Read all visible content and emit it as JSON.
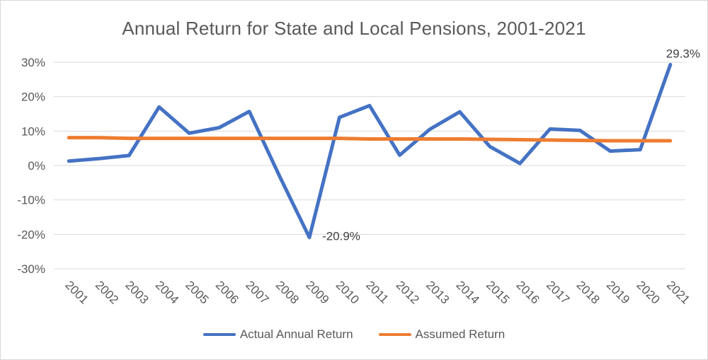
{
  "chart_data": {
    "type": "line",
    "title": "Annual Return for State and Local Pensions, 2001-2021",
    "xlabel": "",
    "ylabel": "",
    "categories": [
      "2001",
      "2002",
      "2003",
      "2004",
      "2005",
      "2006",
      "2007",
      "2008",
      "2009",
      "2010",
      "2011",
      "2012",
      "2013",
      "2014",
      "2015",
      "2016",
      "2017",
      "2018",
      "2019",
      "2020",
      "2021"
    ],
    "ylim": [
      -30,
      30
    ],
    "yticks": [
      -30,
      -20,
      -10,
      0,
      10,
      20,
      30
    ],
    "ytick_labels": [
      "-30%",
      "-20%",
      "-10%",
      "0%",
      "10%",
      "20%",
      "30%"
    ],
    "grid": true,
    "legend_position": "bottom",
    "series": [
      {
        "name": "Actual Annual Return",
        "color": "#4472c4",
        "values": [
          1.3,
          2.0,
          2.9,
          17.0,
          9.4,
          11.0,
          15.7,
          -3.0,
          -20.9,
          14.0,
          17.4,
          3.0,
          10.5,
          15.6,
          5.5,
          0.6,
          10.6,
          10.2,
          4.2,
          4.6,
          29.3
        ]
      },
      {
        "name": "Assumed Return",
        "color": "#ed7d31",
        "values": [
          8.1,
          8.1,
          7.9,
          7.9,
          7.9,
          7.9,
          7.9,
          7.9,
          7.9,
          7.9,
          7.7,
          7.7,
          7.7,
          7.7,
          7.6,
          7.5,
          7.4,
          7.3,
          7.2,
          7.2,
          7.2
        ]
      }
    ],
    "annotations": [
      {
        "text": "29.3%",
        "category": "2021",
        "value": 29.3
      },
      {
        "text": "-20.9%",
        "category": "2009",
        "value": -20.9
      }
    ]
  }
}
